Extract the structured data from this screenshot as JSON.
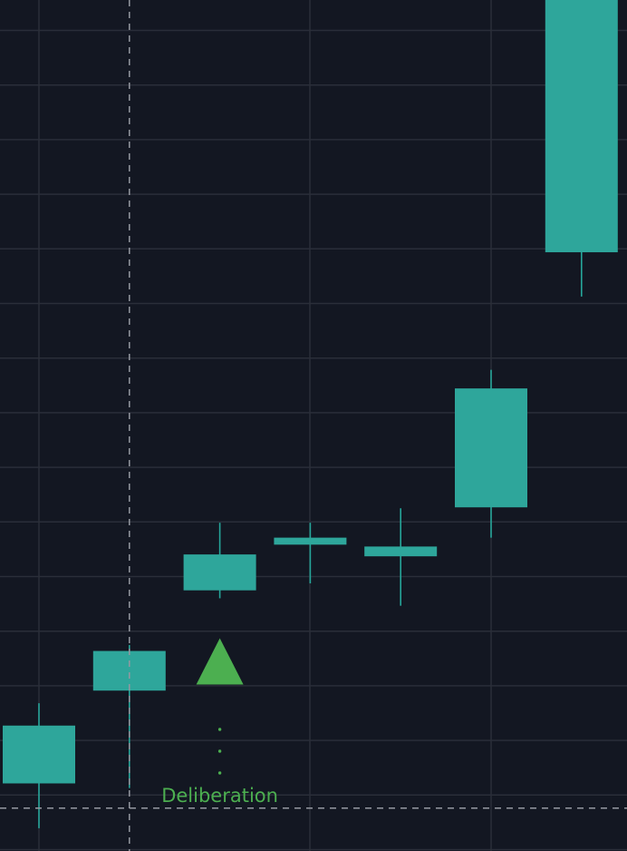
{
  "colors": {
    "background": "#131722",
    "grid": "#2a2e39",
    "candle_up": "#26a69a",
    "candle_fill": "#2ea69b",
    "crosshair": "#9598a1",
    "marker": "#4caf50"
  },
  "chart_data": {
    "type": "candlestick",
    "grid": true,
    "y_axis_visible": false,
    "x_axis_visible": false,
    "candles": [
      {
        "index": 0,
        "open": 5.13,
        "high": 6.85,
        "low": 4.17,
        "close": 6.37
      },
      {
        "index": 1,
        "open": 7.12,
        "high": 8.1,
        "low": 5.03,
        "close": 7.97
      },
      {
        "index": 2,
        "open": 9.27,
        "high": 10.72,
        "low": 9.1,
        "close": 10.04
      },
      {
        "index": 3,
        "open": 10.25,
        "high": 10.72,
        "low": 9.42,
        "close": 10.4
      },
      {
        "index": 4,
        "open": 10.0,
        "high": 11.03,
        "low": 8.94,
        "close": 10.21
      },
      {
        "index": 5,
        "open": 11.05,
        "high": 14.0,
        "low": 10.4,
        "close": 13.6
      },
      {
        "index": 6,
        "open": 16.52,
        "high": 22.24,
        "low": 15.57,
        "close": 22.24
      }
    ],
    "markers": [
      {
        "candle_index": 2,
        "shape": "arrow-up",
        "text": "Deliberation"
      }
    ],
    "crosshair": {
      "candle_index": 1,
      "price": 4.6
    }
  }
}
